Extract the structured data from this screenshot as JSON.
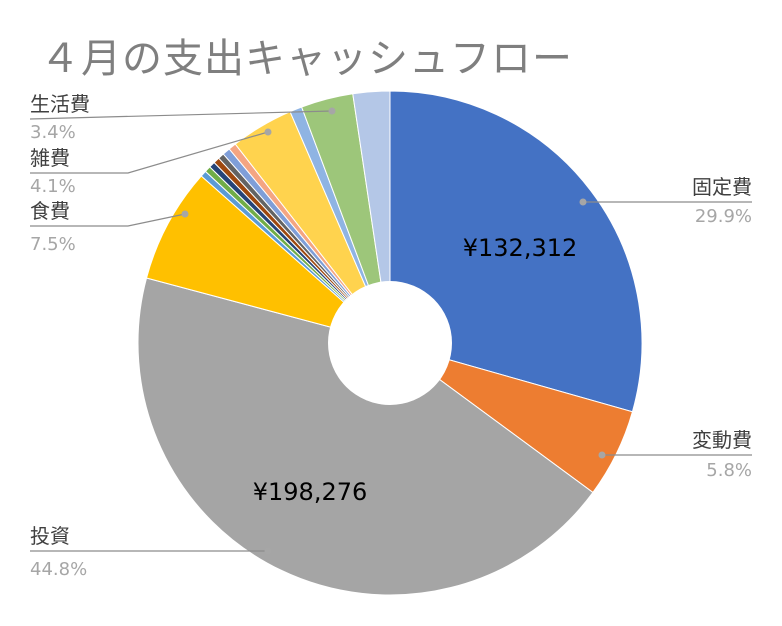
{
  "chart_data": {
    "type": "pie",
    "title": "４月の支出キャッシュフロー",
    "hole": true,
    "slices": [
      {
        "name": "固定費",
        "percent": 29.9,
        "percent_label": "29.9%",
        "value_label": "¥132,312",
        "color": "#4472c4"
      },
      {
        "name": "変動費",
        "percent": 5.8,
        "percent_label": "5.8%",
        "color": "#ed7d31"
      },
      {
        "name": "投資",
        "percent": 44.8,
        "percent_label": "44.8%",
        "value_label": "¥198,276",
        "color": "#a5a5a5"
      },
      {
        "name": "食費",
        "percent": 7.5,
        "percent_label": "7.5%",
        "color": "#ffc000"
      },
      {
        "name": "",
        "percent": 0.4,
        "color": "#5b9bd5"
      },
      {
        "name": "",
        "percent": 0.4,
        "color": "#70ad47"
      },
      {
        "name": "",
        "percent": 0.4,
        "color": "#264478"
      },
      {
        "name": "",
        "percent": 0.4,
        "color": "#9e480e"
      },
      {
        "name": "",
        "percent": 0.4,
        "color": "#636363"
      },
      {
        "name": "",
        "percent": 0.5,
        "color": "#7f9ed8"
      },
      {
        "name": "",
        "percent": 0.5,
        "color": "#f4a582"
      },
      {
        "name": "雑費",
        "percent": 4.1,
        "percent_label": "4.1%",
        "color": "#ffd34e"
      },
      {
        "name": "",
        "percent": 0.8,
        "color": "#8fb4e3"
      },
      {
        "name": "生活費",
        "percent": 3.4,
        "percent_label": "3.4%",
        "color": "#9dc67a"
      },
      {
        "name": "",
        "percent": 2.4,
        "color": "#b4c7e7"
      }
    ]
  }
}
